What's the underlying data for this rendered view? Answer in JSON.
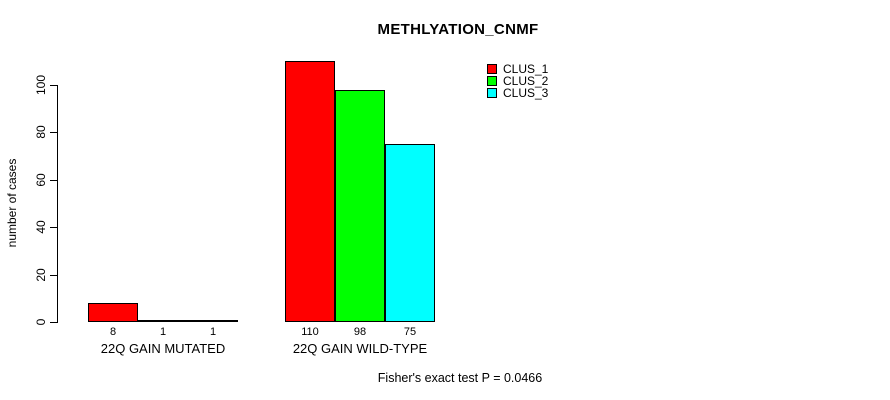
{
  "chart_data": {
    "type": "bar",
    "title": "METHLYATION_CNMF",
    "xlabel": "",
    "ylabel": "number of cases",
    "categories": [
      "22Q GAIN MUTATED",
      "22Q GAIN WILD-TYPE"
    ],
    "series": [
      {
        "name": "CLUS_1",
        "color": "#ff0000",
        "values": [
          8,
          110
        ]
      },
      {
        "name": "CLUS_2",
        "color": "#00ff00",
        "values": [
          1,
          98
        ]
      },
      {
        "name": "CLUS_3",
        "color": "#00ffff",
        "values": [
          1,
          75
        ]
      }
    ],
    "bar_value_labels": [
      [
        "8",
        "1",
        "1"
      ],
      [
        "110",
        "98",
        "75"
      ]
    ],
    "ylim": [
      0,
      100
    ],
    "yticks": [
      0,
      20,
      40,
      60,
      80,
      100
    ],
    "grid": false,
    "legend_position": "top-right",
    "annotation": "Fisher's exact test P = 0.0466"
  },
  "legend": {
    "items": [
      {
        "label": "CLUS_1",
        "color": "#ff0000"
      },
      {
        "label": "CLUS_2",
        "color": "#00ff00"
      },
      {
        "label": "CLUS_3",
        "color": "#00ffff"
      }
    ]
  },
  "colors": {
    "axis": "#000000",
    "background": "#ffffff"
  }
}
